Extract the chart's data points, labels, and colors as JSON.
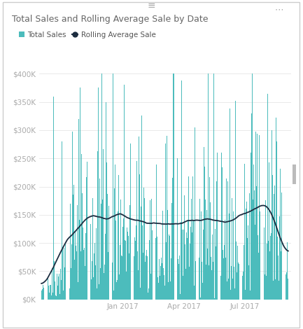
{
  "title": "Total Sales and Rolling Average Sale by Date",
  "legend_labels": [
    "Total Sales",
    "Rolling Average Sale"
  ],
  "legend_colors": [
    "#4CBCBC",
    "#1C2D40"
  ],
  "bar_color": "#4CBCBC",
  "line_color": "#1C2D40",
  "background_color": "#FFFFFF",
  "ytick_labels": [
    "$0K",
    "$50K",
    "$100K",
    "$150K",
    "$200K",
    "$250K",
    "$300K",
    "$350K",
    "$400K"
  ],
  "ytick_values": [
    0,
    50000,
    100000,
    150000,
    200000,
    250000,
    300000,
    350000,
    400000
  ],
  "xtick_labels": [
    "Jan 2017",
    "Apr 2017",
    "Jul 2017"
  ],
  "xtick_positions": [
    120,
    210,
    300
  ],
  "ylim": [
    0,
    420000
  ],
  "n_bars": 365,
  "rolling_window": 60,
  "seed": 7,
  "title_fontsize": 9,
  "tick_fontsize": 7.5,
  "legend_fontsize": 7.5,
  "grid_color": "#E0E0E0",
  "tick_color": "#AAAAAA",
  "border_color": "#CCCCCC"
}
